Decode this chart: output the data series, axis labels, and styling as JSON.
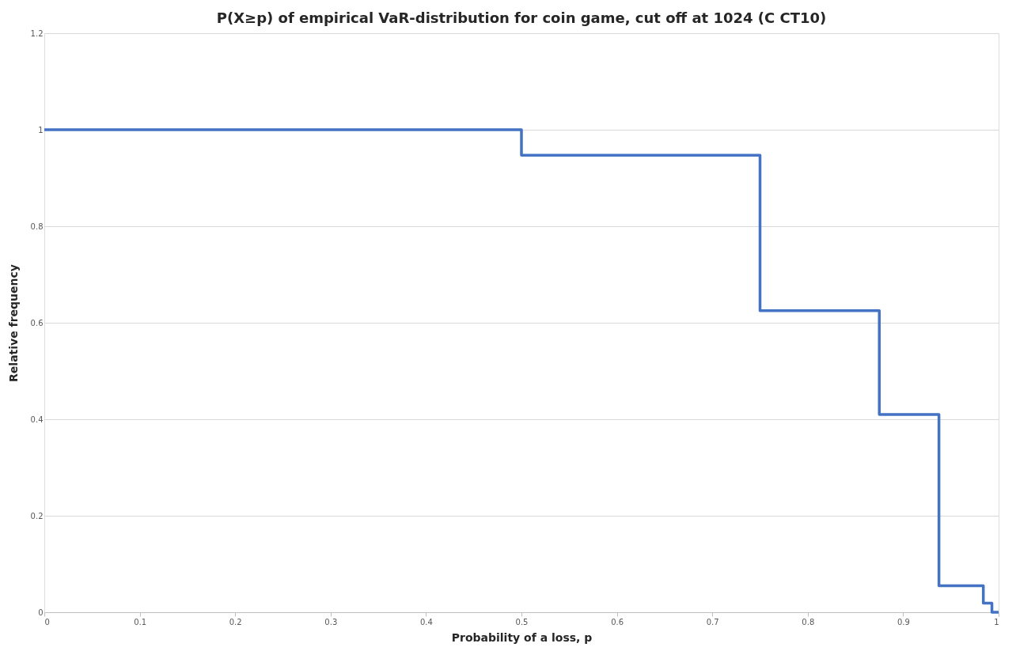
{
  "chart_data": {
    "type": "step",
    "title": "P(X≥p) of empirical VaR-distribution for coin game, cut off at 1024 (C CT10)",
    "xlabel": "Probability of a loss, p",
    "ylabel": "Relative frequency",
    "x": [
      0,
      0.5,
      0.75,
      0.875,
      0.9375,
      0.984,
      0.993,
      1
    ],
    "series": [
      {
        "color": "#4472c4",
        "values": [
          1,
          0.947,
          0.625,
          0.41,
          0.055,
          0.019,
          0,
          0
        ]
      }
    ],
    "xlim": [
      0,
      1
    ],
    "xticks": [
      0,
      0.1,
      0.2,
      0.3,
      0.4,
      0.5,
      0.6,
      0.7,
      0.8,
      0.9,
      1
    ],
    "ylim": [
      0,
      1.2
    ],
    "yticks": [
      0,
      0.2,
      0.4,
      0.6,
      0.8,
      1,
      1.2
    ],
    "grid": "y",
    "marker": "none",
    "line_style": "solid"
  }
}
